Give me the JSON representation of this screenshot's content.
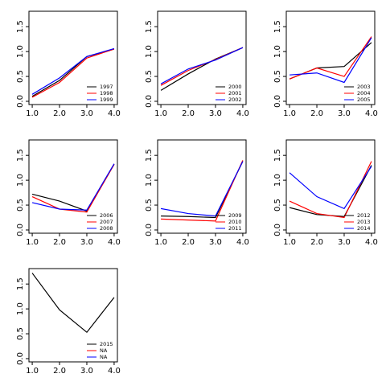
{
  "chart_data": [
    {
      "type": "line",
      "x": [
        1,
        2,
        3,
        4
      ],
      "xlim": [
        0.88,
        4.12
      ],
      "ylim": [
        -0.065,
        1.81
      ],
      "xticks": [
        {
          "value": 1,
          "label": "1.0"
        },
        {
          "value": 2,
          "label": "2.0"
        },
        {
          "value": 3,
          "label": "3.0"
        },
        {
          "value": 4,
          "label": "4.0"
        }
      ],
      "yticks": [
        {
          "value": 0,
          "label": "0.0"
        },
        {
          "value": 0.5,
          "label": "0.5"
        },
        {
          "value": 1,
          "label": "1.0"
        },
        {
          "value": 1.5,
          "label": "1.5"
        }
      ],
      "legend": "bottomright",
      "series": [
        {
          "name": "1997",
          "color": "#000000",
          "values": [
            0.1,
            0.42,
            0.9,
            1.05
          ]
        },
        {
          "name": "1998",
          "color": "#ff0000",
          "values": [
            0.08,
            0.38,
            0.87,
            1.05
          ]
        },
        {
          "name": "1999",
          "color": "#0000ff",
          "values": [
            0.14,
            0.47,
            0.9,
            1.06
          ]
        }
      ]
    },
    {
      "type": "line",
      "x": [
        1,
        2,
        3,
        4
      ],
      "xlim": [
        0.88,
        4.12
      ],
      "ylim": [
        -0.065,
        1.81
      ],
      "xticks": [
        {
          "value": 1,
          "label": "1.0"
        },
        {
          "value": 2,
          "label": "2.0"
        },
        {
          "value": 3,
          "label": "3.0"
        },
        {
          "value": 4,
          "label": "4.0"
        }
      ],
      "yticks": [
        {
          "value": 0,
          "label": "0.0"
        },
        {
          "value": 0.5,
          "label": "0.5"
        },
        {
          "value": 1,
          "label": "1.0"
        },
        {
          "value": 1.5,
          "label": "1.5"
        }
      ],
      "legend": "bottomright",
      "series": [
        {
          "name": "2000",
          "color": "#000000",
          "values": [
            0.22,
            0.55,
            0.85,
            1.08
          ]
        },
        {
          "name": "2001",
          "color": "#ff0000",
          "values": [
            0.32,
            0.62,
            0.84,
            1.08
          ]
        },
        {
          "name": "2002",
          "color": "#0000ff",
          "values": [
            0.35,
            0.65,
            0.83,
            1.08
          ]
        }
      ]
    },
    {
      "type": "line",
      "x": [
        1,
        2,
        3,
        4
      ],
      "xlim": [
        0.88,
        4.12
      ],
      "ylim": [
        -0.065,
        1.81
      ],
      "xticks": [
        {
          "value": 1,
          "label": "1.0"
        },
        {
          "value": 2,
          "label": "2.0"
        },
        {
          "value": 3,
          "label": "3.0"
        },
        {
          "value": 4,
          "label": "4.0"
        }
      ],
      "yticks": [
        {
          "value": 0,
          "label": "0.0"
        },
        {
          "value": 0.5,
          "label": "0.5"
        },
        {
          "value": 1,
          "label": "1.0"
        },
        {
          "value": 1.5,
          "label": "1.5"
        }
      ],
      "legend": "bottomright",
      "series": [
        {
          "name": "2003",
          "color": "#000000",
          "values": [
            0.45,
            0.67,
            0.7,
            1.18
          ]
        },
        {
          "name": "2004",
          "color": "#ff0000",
          "values": [
            0.45,
            0.67,
            0.5,
            1.3
          ]
        },
        {
          "name": "2005",
          "color": "#0000ff",
          "values": [
            0.53,
            0.57,
            0.38,
            1.28
          ]
        }
      ]
    },
    {
      "type": "line",
      "x": [
        1,
        2,
        3,
        4
      ],
      "xlim": [
        0.88,
        4.12
      ],
      "ylim": [
        -0.065,
        1.81
      ],
      "xticks": [
        {
          "value": 1,
          "label": "1.0"
        },
        {
          "value": 2,
          "label": "2.0"
        },
        {
          "value": 3,
          "label": "3.0"
        },
        {
          "value": 4,
          "label": "4.0"
        }
      ],
      "yticks": [
        {
          "value": 0,
          "label": "0.0"
        },
        {
          "value": 0.5,
          "label": "0.5"
        },
        {
          "value": 1,
          "label": "1.0"
        },
        {
          "value": 1.5,
          "label": "1.5"
        }
      ],
      "legend": "bottomright",
      "series": [
        {
          "name": "2006",
          "color": "#000000",
          "values": [
            0.72,
            0.58,
            0.38,
            1.32
          ]
        },
        {
          "name": "2007",
          "color": "#ff0000",
          "values": [
            0.67,
            0.42,
            0.36,
            1.32
          ]
        },
        {
          "name": "2008",
          "color": "#0000ff",
          "values": [
            0.55,
            0.42,
            0.4,
            1.33
          ]
        }
      ]
    },
    {
      "type": "line",
      "x": [
        1,
        2,
        3,
        4
      ],
      "xlim": [
        0.88,
        4.12
      ],
      "ylim": [
        -0.065,
        1.81
      ],
      "xticks": [
        {
          "value": 1,
          "label": "1.0"
        },
        {
          "value": 2,
          "label": "2.0"
        },
        {
          "value": 3,
          "label": "3.0"
        },
        {
          "value": 4,
          "label": "4.0"
        }
      ],
      "yticks": [
        {
          "value": 0,
          "label": "0.0"
        },
        {
          "value": 0.5,
          "label": "0.5"
        },
        {
          "value": 1,
          "label": "1.0"
        },
        {
          "value": 1.5,
          "label": "1.5"
        }
      ],
      "legend": "bottomright",
      "series": [
        {
          "name": "2009",
          "color": "#000000",
          "values": [
            0.28,
            0.27,
            0.25,
            1.38
          ]
        },
        {
          "name": "2010",
          "color": "#ff0000",
          "values": [
            0.22,
            0.2,
            0.18,
            1.4
          ]
        },
        {
          "name": "2011",
          "color": "#0000ff",
          "values": [
            0.43,
            0.33,
            0.28,
            1.38
          ]
        }
      ]
    },
    {
      "type": "line",
      "x": [
        1,
        2,
        3,
        4
      ],
      "xlim": [
        0.88,
        4.12
      ],
      "ylim": [
        -0.065,
        1.81
      ],
      "xticks": [
        {
          "value": 1,
          "label": "1.0"
        },
        {
          "value": 2,
          "label": "2.0"
        },
        {
          "value": 3,
          "label": "3.0"
        },
        {
          "value": 4,
          "label": "4.0"
        }
      ],
      "yticks": [
        {
          "value": 0,
          "label": "0.0"
        },
        {
          "value": 0.5,
          "label": "0.5"
        },
        {
          "value": 1,
          "label": "1.0"
        },
        {
          "value": 1.5,
          "label": "1.5"
        }
      ],
      "legend": "bottomright",
      "series": [
        {
          "name": "2012",
          "color": "#000000",
          "values": [
            0.45,
            0.31,
            0.27,
            1.3
          ]
        },
        {
          "name": "2013",
          "color": "#ff0000",
          "values": [
            0.58,
            0.33,
            0.25,
            1.38
          ]
        },
        {
          "name": "2014",
          "color": "#0000ff",
          "values": [
            1.15,
            0.67,
            0.43,
            1.28
          ]
        }
      ]
    },
    {
      "type": "line",
      "x": [
        1,
        2,
        3,
        4
      ],
      "xlim": [
        0.88,
        4.12
      ],
      "ylim": [
        -0.065,
        1.81
      ],
      "xticks": [
        {
          "value": 1,
          "label": "1.0"
        },
        {
          "value": 2,
          "label": "2.0"
        },
        {
          "value": 3,
          "label": "3.0"
        },
        {
          "value": 4,
          "label": "4.0"
        }
      ],
      "yticks": [
        {
          "value": 0,
          "label": "0.0"
        },
        {
          "value": 0.5,
          "label": "0.5"
        },
        {
          "value": 1,
          "label": "1.0"
        },
        {
          "value": 1.5,
          "label": "1.5"
        }
      ],
      "legend": "bottomright",
      "series": [
        {
          "name": "2015",
          "color": "#000000",
          "values": [
            1.72,
            0.98,
            0.53,
            1.23
          ]
        },
        {
          "name": "NA",
          "color": "#ff0000",
          "values": [
            null,
            null,
            null,
            null
          ]
        },
        {
          "name": "NA",
          "color": "#0000ff",
          "values": [
            null,
            null,
            null,
            null
          ]
        }
      ]
    }
  ]
}
